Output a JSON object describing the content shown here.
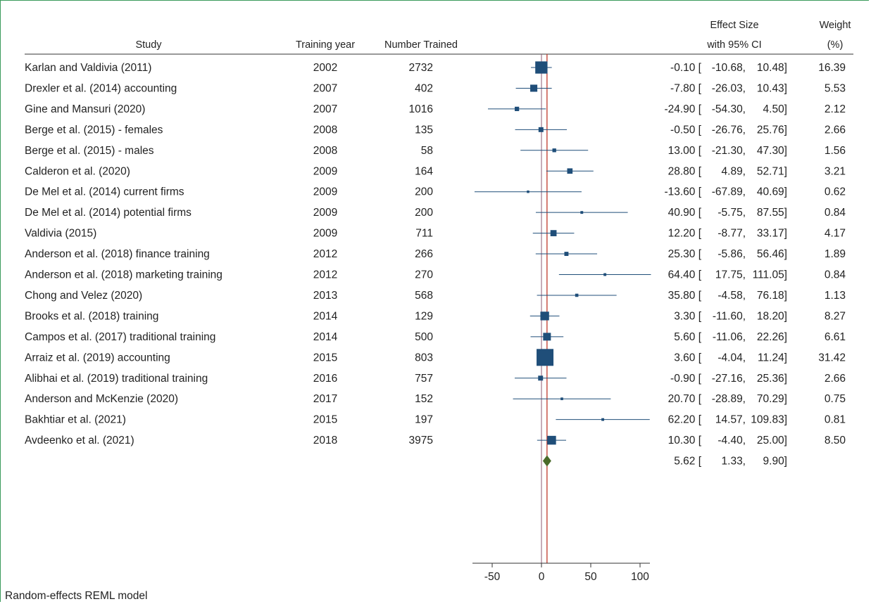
{
  "chart_data": {
    "type": "forest",
    "headers": {
      "study": "Study",
      "year": "Training year",
      "trained": "Number Trained",
      "effect_line1": "Effect Size",
      "effect_line2": "with 95% CI",
      "weight_line1": "Weight",
      "weight_line2": "(%)"
    },
    "studies": [
      {
        "name": "Karlan and Valdivia (2011)",
        "year": "2002",
        "trained": "2732",
        "es": -0.1,
        "lo": -10.68,
        "hi": 10.48,
        "es_txt": "-0.10",
        "lo_txt": "-10.68,",
        "hi_txt": "10.48]",
        "weight": 16.39,
        "weight_txt": "16.39"
      },
      {
        "name": "Drexler et al. (2014) accounting",
        "year": "2007",
        "trained": "402",
        "es": -7.8,
        "lo": -26.03,
        "hi": 10.43,
        "es_txt": "-7.80",
        "lo_txt": "-26.03,",
        "hi_txt": "10.43]",
        "weight": 5.53,
        "weight_txt": "5.53"
      },
      {
        "name": "Gine and Mansuri (2020)",
        "year": "2007",
        "trained": "1016",
        "es": -24.9,
        "lo": -54.3,
        "hi": 4.5,
        "es_txt": "-24.90",
        "lo_txt": "-54.30,",
        "hi_txt": "4.50]",
        "weight": 2.12,
        "weight_txt": "2.12"
      },
      {
        "name": "Berge et al. (2015) - females",
        "year": "2008",
        "trained": "135",
        "es": -0.5,
        "lo": -26.76,
        "hi": 25.76,
        "es_txt": "-0.50",
        "lo_txt": "-26.76,",
        "hi_txt": "25.76]",
        "weight": 2.66,
        "weight_txt": "2.66"
      },
      {
        "name": "Berge et al. (2015) - males",
        "year": "2008",
        "trained": "58",
        "es": 13.0,
        "lo": -21.3,
        "hi": 47.3,
        "es_txt": "13.00",
        "lo_txt": "-21.30,",
        "hi_txt": "47.30]",
        "weight": 1.56,
        "weight_txt": "1.56"
      },
      {
        "name": "Calderon et al. (2020)",
        "year": "2009",
        "trained": "164",
        "es": 28.8,
        "lo": 4.89,
        "hi": 52.71,
        "es_txt": "28.80",
        "lo_txt": "4.89,",
        "hi_txt": "52.71]",
        "weight": 3.21,
        "weight_txt": "3.21"
      },
      {
        "name": "De Mel et al. (2014) current firms",
        "year": "2009",
        "trained": "200",
        "es": -13.6,
        "lo": -67.89,
        "hi": 40.69,
        "es_txt": "-13.60",
        "lo_txt": "-67.89,",
        "hi_txt": "40.69]",
        "weight": 0.62,
        "weight_txt": "0.62"
      },
      {
        "name": "De Mel et al. (2014) potential firms",
        "year": "2009",
        "trained": "200",
        "es": 40.9,
        "lo": -5.75,
        "hi": 87.55,
        "es_txt": "40.90",
        "lo_txt": "-5.75,",
        "hi_txt": "87.55]",
        "weight": 0.84,
        "weight_txt": "0.84"
      },
      {
        "name": "Valdivia (2015)",
        "year": "2009",
        "trained": "711",
        "es": 12.2,
        "lo": -8.77,
        "hi": 33.17,
        "es_txt": "12.20",
        "lo_txt": "-8.77,",
        "hi_txt": "33.17]",
        "weight": 4.17,
        "weight_txt": "4.17"
      },
      {
        "name": "Anderson et al. (2018) finance training",
        "year": "2012",
        "trained": "266",
        "es": 25.3,
        "lo": -5.86,
        "hi": 56.46,
        "es_txt": "25.30",
        "lo_txt": "-5.86,",
        "hi_txt": "56.46]",
        "weight": 1.89,
        "weight_txt": "1.89"
      },
      {
        "name": "Anderson et al. (2018) marketing training",
        "year": "2012",
        "trained": "270",
        "es": 64.4,
        "lo": 17.75,
        "hi": 111.05,
        "es_txt": "64.40",
        "lo_txt": "17.75,",
        "hi_txt": "111.05]",
        "weight": 0.84,
        "weight_txt": "0.84"
      },
      {
        "name": "Chong and Velez (2020)",
        "year": "2013",
        "trained": "568",
        "es": 35.8,
        "lo": -4.58,
        "hi": 76.18,
        "es_txt": "35.80",
        "lo_txt": "-4.58,",
        "hi_txt": "76.18]",
        "weight": 1.13,
        "weight_txt": "1.13"
      },
      {
        "name": "Brooks et al. (2018) training",
        "year": "2014",
        "trained": "129",
        "es": 3.3,
        "lo": -11.6,
        "hi": 18.2,
        "es_txt": "3.30",
        "lo_txt": "-11.60,",
        "hi_txt": "18.20]",
        "weight": 8.27,
        "weight_txt": "8.27"
      },
      {
        "name": "Campos et al. (2017) traditional training",
        "year": "2014",
        "trained": "500",
        "es": 5.6,
        "lo": -11.06,
        "hi": 22.26,
        "es_txt": "5.60",
        "lo_txt": "-11.06,",
        "hi_txt": "22.26]",
        "weight": 6.61,
        "weight_txt": "6.61"
      },
      {
        "name": "Arraiz et al. (2019) accounting",
        "year": "2015",
        "trained": "803",
        "es": 3.6,
        "lo": -4.04,
        "hi": 11.24,
        "es_txt": "3.60",
        "lo_txt": "-4.04,",
        "hi_txt": "11.24]",
        "weight": 31.42,
        "weight_txt": "31.42"
      },
      {
        "name": "Alibhai et al. (2019) traditional training",
        "year": "2016",
        "trained": "757",
        "es": -0.9,
        "lo": -27.16,
        "hi": 25.36,
        "es_txt": "-0.90",
        "lo_txt": "-27.16,",
        "hi_txt": "25.36]",
        "weight": 2.66,
        "weight_txt": "2.66"
      },
      {
        "name": "Anderson and McKenzie (2020)",
        "year": "2017",
        "trained": "152",
        "es": 20.7,
        "lo": -28.89,
        "hi": 70.29,
        "es_txt": "20.70",
        "lo_txt": "-28.89,",
        "hi_txt": "70.29]",
        "weight": 0.75,
        "weight_txt": "0.75"
      },
      {
        "name": "Bakhtiar et al. (2021)",
        "year": "2015",
        "trained": "197",
        "es": 62.2,
        "lo": 14.57,
        "hi": 109.83,
        "es_txt": "62.20",
        "lo_txt": "14.57,",
        "hi_txt": "109.83]",
        "weight": 0.81,
        "weight_txt": "0.81"
      },
      {
        "name": "Avdeenko et al. (2021)",
        "year": "2018",
        "trained": "3975",
        "es": 10.3,
        "lo": -4.4,
        "hi": 25.0,
        "es_txt": "10.30",
        "lo_txt": "-4.40,",
        "hi_txt": "25.00]",
        "weight": 8.5,
        "weight_txt": "8.50"
      }
    ],
    "pooled": {
      "es": 5.62,
      "lo": 1.33,
      "hi": 9.9,
      "es_txt": "5.62",
      "lo_txt": "1.33,",
      "hi_txt": "9.90]"
    },
    "x_ticks": [
      -50,
      0,
      50,
      100
    ],
    "x_tick_labels": [
      "-50",
      "0",
      "50",
      "100"
    ],
    "xlim": [
      -70,
      110
    ],
    "footer": "Random-effects REML model",
    "colors": {
      "marker": "#1f4e79",
      "ci_line": "#1f4e79",
      "diamond": "#4a6b2a",
      "pooled_line": "#c0392b",
      "null_line": "#8e5a73",
      "frame": "#3a9a5b"
    }
  }
}
